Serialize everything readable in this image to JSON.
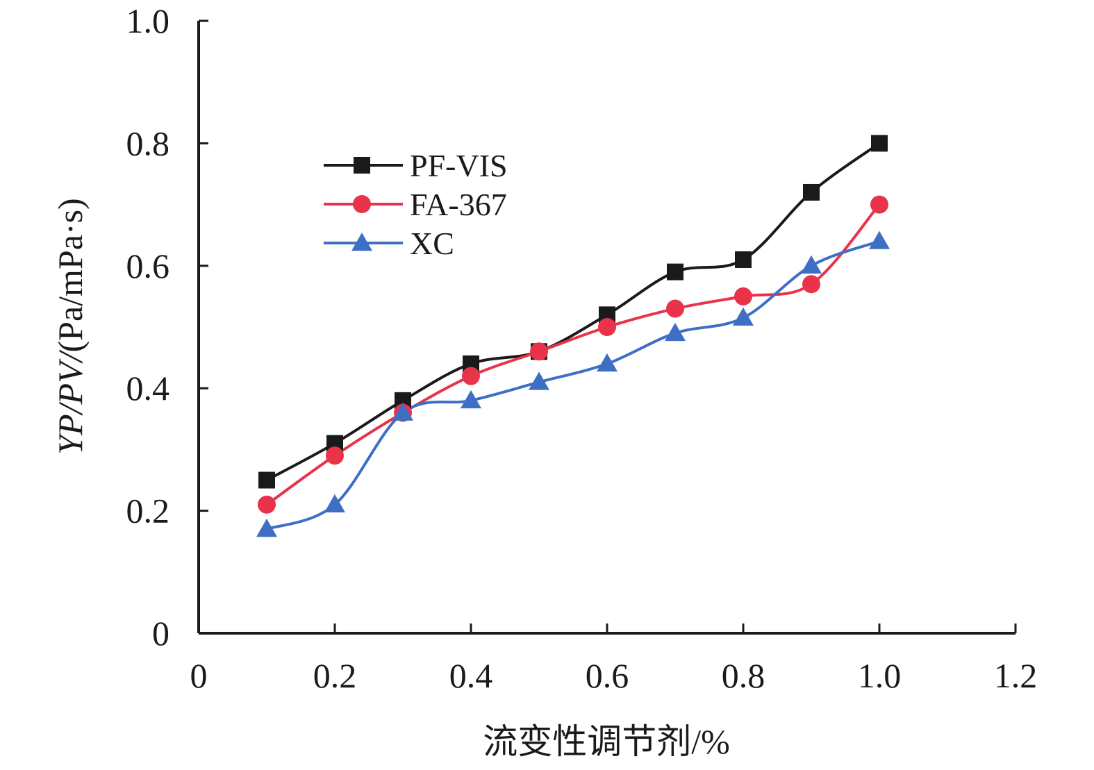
{
  "chart_data": {
    "type": "line",
    "title": "",
    "xlabel": "流变性调节剂/%",
    "ylabel_italic_part": "YP/PV/",
    "ylabel_rest": "(Pa/mPa·s)",
    "xlim": [
      0,
      1.2
    ],
    "ylim": [
      0,
      1.0
    ],
    "x_ticks": [
      0,
      0.2,
      0.4,
      0.6,
      0.8,
      1.0,
      1.2
    ],
    "x_tick_labels": [
      "0",
      "0.2",
      "0.4",
      "0.6",
      "0.8",
      "1.0",
      "1.2"
    ],
    "y_ticks": [
      0,
      0.2,
      0.4,
      0.6,
      0.8,
      1.0
    ],
    "y_tick_labels": [
      "0",
      "0.2",
      "0.4",
      "0.6",
      "0.8",
      "1.0"
    ],
    "grid": false,
    "legend_position": "upper-left",
    "x": [
      0.1,
      0.2,
      0.3,
      0.4,
      0.5,
      0.6,
      0.7,
      0.8,
      0.9,
      1.0
    ],
    "series": [
      {
        "name": "PF-VIS",
        "marker": "square",
        "color": "#1a1a1a",
        "values": [
          0.25,
          0.31,
          0.38,
          0.44,
          0.46,
          0.52,
          0.59,
          0.61,
          0.72,
          0.8
        ]
      },
      {
        "name": "FA-367",
        "marker": "circle",
        "color": "#e8334a",
        "values": [
          0.21,
          0.29,
          0.36,
          0.42,
          0.46,
          0.5,
          0.53,
          0.55,
          0.57,
          0.7
        ]
      },
      {
        "name": "XC",
        "marker": "triangle",
        "color": "#3f6fc4",
        "values": [
          0.17,
          0.21,
          0.36,
          0.38,
          0.41,
          0.44,
          0.49,
          0.515,
          0.6,
          0.64
        ]
      }
    ]
  }
}
